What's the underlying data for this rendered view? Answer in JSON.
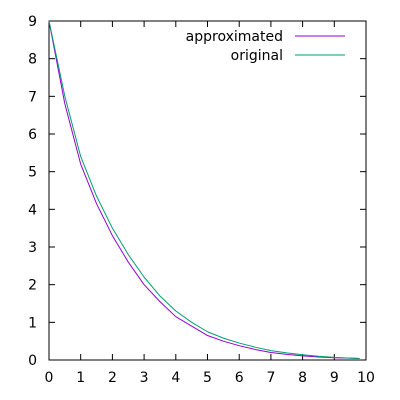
{
  "chart_data": {
    "type": "line",
    "title": "",
    "xlabel": "",
    "ylabel": "",
    "xlim": [
      0,
      10
    ],
    "ylim": [
      0,
      9
    ],
    "x_ticks": [
      "0",
      "1",
      "2",
      "3",
      "4",
      "5",
      "6",
      "7",
      "8",
      "9",
      "10"
    ],
    "y_ticks": [
      "0",
      "1",
      "2",
      "3",
      "4",
      "5",
      "6",
      "7",
      "8",
      "9"
    ],
    "grid": false,
    "legend_position": "top-right",
    "series": [
      {
        "name": "approximated",
        "color": "#9400d3",
        "x": [
          0,
          0.5,
          1,
          1.5,
          2,
          2.5,
          3,
          3.5,
          4,
          4.5,
          5,
          5.5,
          6,
          6.5,
          7,
          7.5,
          8,
          8.5,
          9,
          9.5,
          9.8
        ],
        "y": [
          9.0,
          6.8,
          5.2,
          4.15,
          3.3,
          2.6,
          2.0,
          1.55,
          1.15,
          0.9,
          0.65,
          0.5,
          0.38,
          0.28,
          0.2,
          0.15,
          0.11,
          0.08,
          0.06,
          0.05,
          0.04
        ]
      },
      {
        "name": "original",
        "color": "#009e73",
        "x": [
          0,
          0.5,
          1,
          1.5,
          2,
          2.5,
          3,
          3.5,
          4,
          4.5,
          5,
          5.5,
          6,
          6.5,
          7,
          7.5,
          8,
          8.5,
          9,
          9.5,
          9.8
        ],
        "y": [
          9.0,
          7.0,
          5.4,
          4.35,
          3.5,
          2.8,
          2.2,
          1.7,
          1.3,
          1.0,
          0.75,
          0.58,
          0.45,
          0.34,
          0.25,
          0.19,
          0.14,
          0.1,
          0.07,
          0.05,
          0.04
        ]
      }
    ]
  }
}
